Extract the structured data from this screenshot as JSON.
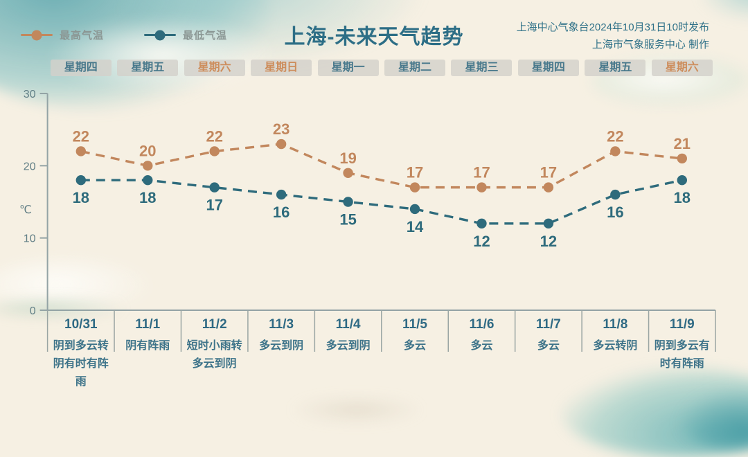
{
  "header": {
    "title": "上海-未来天气趋势",
    "issued": "上海中心气象台2024年10月31日10时发布",
    "producer": "上海市气象服务中心 制作"
  },
  "legend": [
    {
      "label": "最高气温",
      "color": "#c2875d"
    },
    {
      "label": "最低气温",
      "color": "#2e6b7c"
    }
  ],
  "weekdays": [
    {
      "label": "星期四",
      "weekend": false
    },
    {
      "label": "星期五",
      "weekend": false
    },
    {
      "label": "星期六",
      "weekend": true
    },
    {
      "label": "星期日",
      "weekend": true
    },
    {
      "label": "星期一",
      "weekend": false
    },
    {
      "label": "星期二",
      "weekend": false
    },
    {
      "label": "星期三",
      "weekend": false
    },
    {
      "label": "星期四",
      "weekend": false
    },
    {
      "label": "星期五",
      "weekend": false
    },
    {
      "label": "星期六",
      "weekend": true
    }
  ],
  "chart_data": {
    "type": "line",
    "x": [
      "10/31",
      "11/1",
      "11/2",
      "11/3",
      "11/4",
      "11/5",
      "11/6",
      "11/7",
      "11/8",
      "11/9"
    ],
    "series": [
      {
        "name": "最高气温",
        "color": "#c2875d",
        "values": [
          22,
          20,
          22,
          23,
          19,
          17,
          17,
          17,
          22,
          21
        ]
      },
      {
        "name": "最低气温",
        "color": "#2e6b7c",
        "values": [
          18,
          18,
          17,
          16,
          15,
          14,
          12,
          12,
          16,
          18
        ]
      }
    ],
    "ylabel": "℃",
    "yticks": [
      0,
      10,
      20,
      30
    ],
    "ylim": [
      0,
      30
    ],
    "grid": false,
    "line_style": "dashed",
    "legend_position": "top-left"
  },
  "forecast": [
    {
      "date": "10/31",
      "weather": "阴到多云转阴有时有阵雨"
    },
    {
      "date": "11/1",
      "weather": "阴有阵雨"
    },
    {
      "date": "11/2",
      "weather": "短时小雨转多云到阴"
    },
    {
      "date": "11/3",
      "weather": "多云到阴"
    },
    {
      "date": "11/4",
      "weather": "多云到阴"
    },
    {
      "date": "11/5",
      "weather": "多云"
    },
    {
      "date": "11/6",
      "weather": "多云"
    },
    {
      "date": "11/7",
      "weather": "多云"
    },
    {
      "date": "11/8",
      "weather": "多云转阴"
    },
    {
      "date": "11/9",
      "weather": "阴到多云有时有阵雨"
    }
  ],
  "colors": {
    "background": "#f6f0e3",
    "title": "#2d6e86",
    "max_series": "#c2875d",
    "min_series": "#2e6b7c",
    "axis": "#93a3a5",
    "weekday_text": "#49798c",
    "weekend_text": "#cd8d5c",
    "forecast_text": "#3d7389"
  }
}
